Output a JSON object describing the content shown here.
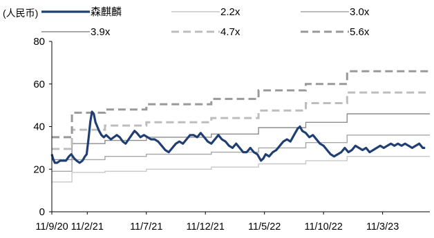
{
  "chart_data": {
    "type": "line",
    "unit_label": "(人民币)",
    "xlabel": "",
    "ylabel": "",
    "ylim": [
      0,
      80
    ],
    "y_ticks": [
      "0",
      "20",
      "40",
      "60",
      "80"
    ],
    "x_ticks": [
      "11/9/20",
      "11/2/21",
      "11/7/21",
      "11/12/21",
      "11/5/22",
      "11/10/22",
      "11/3/23"
    ],
    "x_tick_index": [
      0,
      3,
      8,
      13,
      18,
      23,
      28
    ],
    "x_range": [
      0,
      32
    ],
    "grid": false,
    "legend_position": "top",
    "series": [
      {
        "name": "森麒麟",
        "color": "#1f3f73",
        "style": "solid-thick",
        "points": [
          [
            0.0,
            27
          ],
          [
            0.1,
            25
          ],
          [
            0.25,
            23
          ],
          [
            0.45,
            23
          ],
          [
            0.7,
            24
          ],
          [
            0.9,
            24
          ],
          [
            1.2,
            24
          ],
          [
            1.45,
            26
          ],
          [
            1.65,
            27
          ],
          [
            1.9,
            25
          ],
          [
            2.1,
            24
          ],
          [
            2.35,
            23
          ],
          [
            2.6,
            24
          ],
          [
            2.8,
            26
          ],
          [
            2.95,
            27
          ],
          [
            3.1,
            34
          ],
          [
            3.25,
            42
          ],
          [
            3.4,
            47
          ],
          [
            3.55,
            46
          ],
          [
            3.7,
            42
          ],
          [
            3.85,
            40
          ],
          [
            4.0,
            38
          ],
          [
            4.2,
            36
          ],
          [
            4.4,
            35
          ],
          [
            4.6,
            36
          ],
          [
            4.8,
            35
          ],
          [
            5.0,
            34
          ],
          [
            5.25,
            35
          ],
          [
            5.5,
            36
          ],
          [
            5.75,
            35
          ],
          [
            6.0,
            33
          ],
          [
            6.25,
            32
          ],
          [
            6.5,
            34
          ],
          [
            6.75,
            36
          ],
          [
            7.0,
            38
          ],
          [
            7.2,
            37
          ],
          [
            7.5,
            35
          ],
          [
            7.8,
            36
          ],
          [
            8.1,
            35
          ],
          [
            8.4,
            34
          ],
          [
            8.7,
            34
          ],
          [
            9.0,
            33
          ],
          [
            9.3,
            31
          ],
          [
            9.6,
            29
          ],
          [
            9.9,
            28
          ],
          [
            10.2,
            30
          ],
          [
            10.5,
            32
          ],
          [
            10.8,
            33
          ],
          [
            11.1,
            32
          ],
          [
            11.4,
            34
          ],
          [
            11.7,
            36
          ],
          [
            12.0,
            36
          ],
          [
            12.3,
            35
          ],
          [
            12.6,
            37
          ],
          [
            12.9,
            35
          ],
          [
            13.2,
            33
          ],
          [
            13.5,
            32
          ],
          [
            13.8,
            34
          ],
          [
            14.1,
            36
          ],
          [
            14.4,
            34
          ],
          [
            14.7,
            33
          ],
          [
            15.0,
            31
          ],
          [
            15.3,
            30
          ],
          [
            15.6,
            32
          ],
          [
            15.9,
            30
          ],
          [
            16.2,
            28
          ],
          [
            16.5,
            28
          ],
          [
            16.8,
            30
          ],
          [
            17.1,
            28
          ],
          [
            17.4,
            27
          ],
          [
            17.7,
            24
          ],
          [
            17.9,
            25
          ],
          [
            18.1,
            27
          ],
          [
            18.4,
            26
          ],
          [
            18.7,
            28
          ],
          [
            19.0,
            29
          ],
          [
            19.3,
            31
          ],
          [
            19.6,
            33
          ],
          [
            19.9,
            34
          ],
          [
            20.2,
            33
          ],
          [
            20.5,
            36
          ],
          [
            20.8,
            39
          ],
          [
            21.0,
            40
          ],
          [
            21.2,
            38
          ],
          [
            21.5,
            37
          ],
          [
            21.8,
            35
          ],
          [
            22.1,
            36
          ],
          [
            22.4,
            34
          ],
          [
            22.7,
            32
          ],
          [
            23.0,
            31
          ],
          [
            23.3,
            29
          ],
          [
            23.6,
            27
          ],
          [
            23.9,
            26
          ],
          [
            24.2,
            27
          ],
          [
            24.5,
            28
          ],
          [
            24.8,
            30
          ],
          [
            25.1,
            28
          ],
          [
            25.4,
            29
          ],
          [
            25.7,
            31
          ],
          [
            26.0,
            30
          ],
          [
            26.3,
            29
          ],
          [
            26.6,
            30
          ],
          [
            26.9,
            28
          ],
          [
            27.2,
            29
          ],
          [
            27.5,
            30
          ],
          [
            27.8,
            31
          ],
          [
            28.1,
            30
          ],
          [
            28.4,
            31
          ],
          [
            28.7,
            32
          ],
          [
            29.0,
            31
          ],
          [
            29.3,
            32
          ],
          [
            29.6,
            31
          ],
          [
            29.9,
            32
          ],
          [
            30.2,
            31
          ],
          [
            30.5,
            30
          ],
          [
            30.8,
            31
          ],
          [
            31.1,
            32
          ],
          [
            31.4,
            30
          ],
          [
            31.6,
            30
          ]
        ]
      },
      {
        "name": "2.2x",
        "color": "#c8c8c8",
        "style": "solid-thin",
        "points": [
          [
            0,
            14
          ],
          [
            1.7,
            14
          ],
          [
            1.7,
            18.5
          ],
          [
            4.5,
            18.5
          ],
          [
            4.5,
            19
          ],
          [
            8.0,
            19
          ],
          [
            8.0,
            20
          ],
          [
            13.5,
            20
          ],
          [
            13.5,
            21
          ],
          [
            17.5,
            21
          ],
          [
            17.5,
            22.5
          ],
          [
            21.5,
            22.5
          ],
          [
            21.5,
            24
          ],
          [
            25.0,
            24
          ],
          [
            25.0,
            26
          ],
          [
            32,
            26
          ]
        ]
      },
      {
        "name": "3.0x",
        "color": "#a6a6a6",
        "style": "solid-thin",
        "points": [
          [
            0,
            19
          ],
          [
            1.7,
            19
          ],
          [
            1.7,
            24.5
          ],
          [
            4.5,
            24.5
          ],
          [
            4.5,
            26
          ],
          [
            8.0,
            26
          ],
          [
            8.0,
            27
          ],
          [
            13.5,
            27
          ],
          [
            13.5,
            28
          ],
          [
            17.5,
            28
          ],
          [
            17.5,
            30
          ],
          [
            21.5,
            30
          ],
          [
            21.5,
            32.5
          ],
          [
            25.0,
            32.5
          ],
          [
            25.0,
            36
          ],
          [
            32,
            36
          ]
        ]
      },
      {
        "name": "3.9x",
        "color": "#8c8c8c",
        "style": "solid-thin",
        "points": [
          [
            0,
            24.5
          ],
          [
            1.7,
            24.5
          ],
          [
            1.7,
            32
          ],
          [
            4.5,
            32
          ],
          [
            4.5,
            33.5
          ],
          [
            8.0,
            33.5
          ],
          [
            8.0,
            35
          ],
          [
            13.5,
            35
          ],
          [
            13.5,
            36.5
          ],
          [
            17.5,
            36.5
          ],
          [
            17.5,
            39.5
          ],
          [
            21.5,
            39.5
          ],
          [
            21.5,
            42
          ],
          [
            25.0,
            42
          ],
          [
            25.0,
            46
          ],
          [
            32,
            46
          ]
        ]
      },
      {
        "name": "4.7x",
        "color": "#bdbdbd",
        "style": "dashed",
        "points": [
          [
            0,
            29.5
          ],
          [
            1.7,
            29.5
          ],
          [
            1.7,
            38.5
          ],
          [
            4.5,
            38.5
          ],
          [
            4.5,
            40.5
          ],
          [
            8.0,
            40.5
          ],
          [
            8.0,
            42
          ],
          [
            13.5,
            42
          ],
          [
            13.5,
            44
          ],
          [
            17.5,
            44
          ],
          [
            17.5,
            47.5
          ],
          [
            21.5,
            47.5
          ],
          [
            21.5,
            51
          ],
          [
            25.0,
            51
          ],
          [
            25.0,
            56
          ],
          [
            32,
            56
          ]
        ]
      },
      {
        "name": "5.6x",
        "color": "#999999",
        "style": "dashed",
        "points": [
          [
            0,
            35
          ],
          [
            1.7,
            35
          ],
          [
            1.7,
            46.5
          ],
          [
            4.5,
            46.5
          ],
          [
            4.5,
            48
          ],
          [
            8.0,
            48
          ],
          [
            8.0,
            50.5
          ],
          [
            13.5,
            50.5
          ],
          [
            13.5,
            53
          ],
          [
            17.5,
            53
          ],
          [
            17.5,
            57
          ],
          [
            21.5,
            57
          ],
          [
            21.5,
            60
          ],
          [
            25.0,
            60
          ],
          [
            25.0,
            66
          ],
          [
            32,
            66
          ]
        ]
      }
    ]
  }
}
